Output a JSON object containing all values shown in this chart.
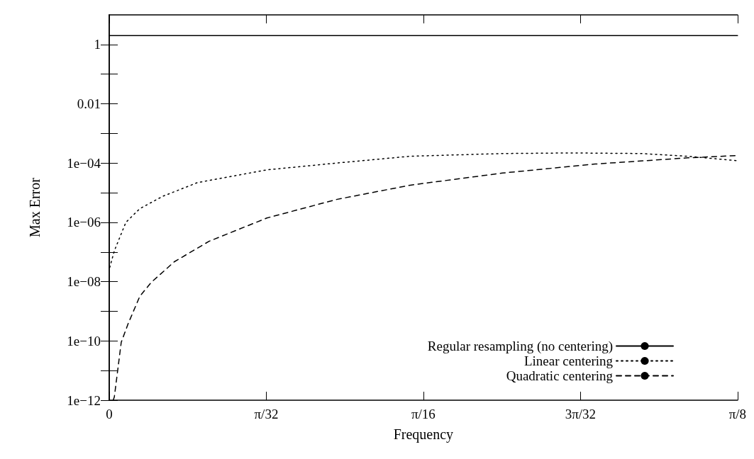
{
  "chart_data": {
    "type": "line",
    "xlabel": "Frequency",
    "ylabel": "Max Error",
    "log": "y",
    "legend": "bottom right",
    "xlim": [
      0,
      0.3927
    ],
    "ylim": [
      1e-12,
      10
    ],
    "xticks": [
      0,
      {
        "value": 0.09817,
        "label": "π/32"
      },
      {
        "value": 0.19635,
        "label": "π/16"
      },
      {
        "value": 0.29452,
        "label": "3π/32"
      },
      {
        "value": 0.3927,
        "label": "π/8"
      }
    ],
    "yticks": [
      {
        "value": 1e-12,
        "label": "1e−12"
      },
      {
        "value": 1e-11,
        "label": null
      },
      {
        "value": 1e-10,
        "label": "1e−10"
      },
      {
        "value": 1e-09,
        "label": null
      },
      {
        "value": 1e-08,
        "label": "1e−08"
      },
      {
        "value": 1e-07,
        "label": null
      },
      {
        "value": 1e-06,
        "label": "1e−06"
      },
      {
        "value": 1e-05,
        "label": null
      },
      {
        "value": 0.0001,
        "label": "1e−04"
      },
      {
        "value": 0.001,
        "label": null
      },
      {
        "value": 0.01,
        "label": "0.01"
      },
      {
        "value": 0.1,
        "label": null
      },
      1
    ],
    "series": [
      {
        "name": "Regular resampling (no centering)",
        "color": "#000000",
        "line_style": "solid",
        "x": [
          0,
          0.3927
        ],
        "values": [
          2,
          2
        ]
      },
      {
        "name": "Linear centering",
        "color": "#000000",
        "line_style": "dotted",
        "x": [
          0.0003,
          0.0032,
          0.0104,
          0.0191,
          0.0335,
          0.0552,
          0.0985,
          0.1419,
          0.1881,
          0.2457,
          0.2891,
          0.3324,
          0.3615,
          0.3927
        ],
        "values": [
          3e-08,
          1.1e-07,
          1e-06,
          2.9e-06,
          7.6e-06,
          2.2e-05,
          5.9e-05,
          0.0001,
          0.00017,
          0.00021,
          0.00022,
          0.00021,
          0.00017,
          0.00012
        ]
      },
      {
        "name": "Quadratic centering",
        "color": "#000000",
        "line_style": "dashed",
        "x": [
          0.0025,
          0.0032,
          0.0075,
          0.0118,
          0.0191,
          0.0263,
          0.0407,
          0.0624,
          0.0985,
          0.1419,
          0.1881,
          0.2457,
          0.3037,
          0.3615,
          0.3927
        ],
        "values": [
          1e-12,
          1.3e-12,
          9e-11,
          3.8e-10,
          3.2e-09,
          9.5e-09,
          4.7e-08,
          2.3e-07,
          1.4e-06,
          5.9e-06,
          1.8e-05,
          4.6e-05,
          9.3e-05,
          0.00015,
          0.00018
        ]
      }
    ]
  }
}
